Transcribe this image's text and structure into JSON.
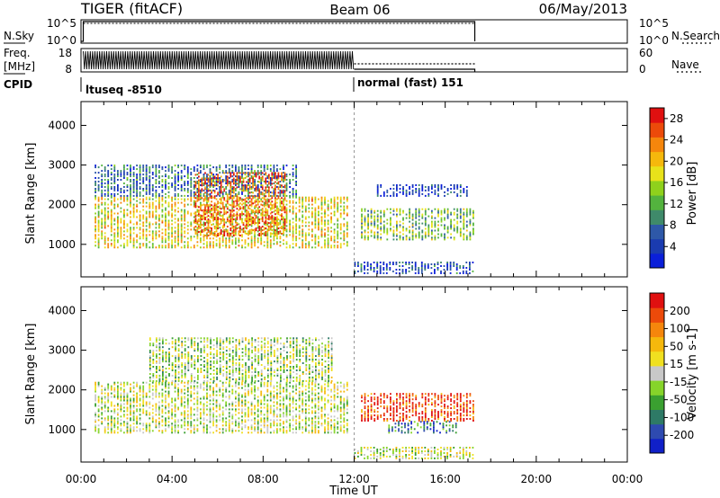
{
  "header": {
    "radar": "TIGER (fitACF)",
    "beam": "Beam 06",
    "date": "06/May/2013"
  },
  "status_panels": {
    "nsky_label": "N.Sky",
    "nsearch_label": "N.Search",
    "nsky_ticks": [
      "10^5",
      "10^0"
    ],
    "nsearch_ticks": [
      "10^5",
      "10^0"
    ],
    "freq_label": "Freq.",
    "freq_unit": "[MHz]",
    "freq_ticks": [
      "18",
      "8"
    ],
    "nave_label": "Nave",
    "nave_ticks": [
      "60",
      "0"
    ],
    "cpid_label": "CPID",
    "cpid_entries": [
      {
        "name": "ltuseq -8510",
        "start_hour": 0.0
      },
      {
        "name": "normal (fast) 151",
        "start_hour": 12.0
      }
    ],
    "data_end_hour": 17.3
  },
  "chart_data": [
    {
      "type": "heatmap",
      "quantity": "Power",
      "ylabel": "Slant Range [km]",
      "xlabel": "Time UT",
      "xlim": [
        0,
        24
      ],
      "ylim": [
        180,
        4600
      ],
      "x_ticks": [
        "00:00",
        "04:00",
        "08:00",
        "12:00",
        "16:00",
        "20:00",
        "00:00"
      ],
      "y_ticks": [
        1000,
        2000,
        3000,
        4000
      ],
      "colorbar": {
        "label": "Power [dB]",
        "ticks": [
          4,
          8,
          12,
          16,
          20,
          24,
          28
        ],
        "range": [
          0,
          30
        ],
        "colors": [
          "#0a1fd9",
          "#1a3bb0",
          "#2e58a8",
          "#3f8a6a",
          "#53b33e",
          "#8fd11c",
          "#e8e21a",
          "#f5b80c",
          "#f5860c",
          "#ec4a0a",
          "#e01010"
        ]
      },
      "regions": [
        {
          "t0": 0.6,
          "t1": 11.8,
          "r0": 900,
          "r1": 2200,
          "level": 0.6
        },
        {
          "t0": 0.6,
          "t1": 9.5,
          "r0": 2200,
          "r1": 3000,
          "level": 0.25
        },
        {
          "t0": 5.0,
          "t1": 9.0,
          "r0": 1200,
          "r1": 2800,
          "level": 0.85
        },
        {
          "t0": 12.3,
          "t1": 17.3,
          "r0": 1100,
          "r1": 1900,
          "level": 0.45
        },
        {
          "t0": 13.0,
          "t1": 17.0,
          "r0": 2200,
          "r1": 2500,
          "level": 0.1
        },
        {
          "t0": 12.0,
          "t1": 17.3,
          "r0": 250,
          "r1": 550,
          "level": 0.15
        }
      ]
    },
    {
      "type": "heatmap",
      "quantity": "Velocity",
      "ylabel": "Slant Range [km]",
      "xlabel": "Time UT",
      "xlim": [
        0,
        24
      ],
      "ylim": [
        180,
        4600
      ],
      "x_ticks": [
        "00:00",
        "04:00",
        "08:00",
        "12:00",
        "16:00",
        "20:00",
        "00:00"
      ],
      "y_ticks": [
        1000,
        2000,
        3000,
        4000
      ],
      "colorbar": {
        "label": "Velocity [m s-1]",
        "ticks": [
          200,
          100,
          50,
          15,
          -15,
          -50,
          -100,
          -200
        ],
        "range": [
          -250,
          250
        ],
        "colors": [
          "#1020c8",
          "#2e4ab0",
          "#2e7a66",
          "#3aa030",
          "#86d42a",
          "#c8c8c8",
          "#f0e020",
          "#f5b80c",
          "#f5860c",
          "#ec4a0a",
          "#e01010"
        ]
      },
      "regions": [
        {
          "t0": 0.6,
          "t1": 11.8,
          "r0": 900,
          "r1": 2200,
          "level": 0.5
        },
        {
          "t0": 3.0,
          "t1": 11.0,
          "r0": 2200,
          "r1": 3300,
          "level": 0.45
        },
        {
          "t0": 12.3,
          "t1": 17.3,
          "r0": 1200,
          "r1": 1900,
          "level": 0.9
        },
        {
          "t0": 13.5,
          "t1": 16.5,
          "r0": 900,
          "r1": 1200,
          "level": 0.2
        },
        {
          "t0": 12.0,
          "t1": 17.3,
          "r0": 250,
          "r1": 550,
          "level": 0.5
        }
      ]
    }
  ]
}
